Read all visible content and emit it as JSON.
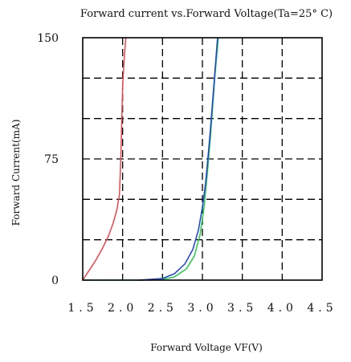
{
  "chart_data": {
    "type": "line",
    "title": "Forward current vs.Forward Voltage(Ta=25° C)",
    "xlabel": "Forward Voltage VF(V)",
    "ylabel": "Forward Current(mA)",
    "xlim": [
      1.5,
      4.5
    ],
    "ylim": [
      0,
      150
    ],
    "x_ticks": [
      1.5,
      2.0,
      2.5,
      3.0,
      3.5,
      4.0,
      4.5
    ],
    "x_tick_labels": [
      "1.5",
      "2.0",
      "2.5",
      "3.0",
      "3.5",
      "4.0",
      "4.5"
    ],
    "y_ticks": [
      0,
      75,
      150
    ],
    "y_tick_labels": [
      "0",
      "75",
      "150"
    ],
    "grid": "dashed",
    "series": [
      {
        "color": "#e8464a",
        "x": [
          1.5,
          1.58,
          1.66,
          1.74,
          1.82,
          1.88,
          1.93,
          1.96,
          1.97,
          1.98,
          1.99,
          2.0,
          2.02,
          2.04
        ],
        "y": [
          0,
          6,
          12,
          19,
          27,
          35,
          44,
          53,
          65,
          80,
          100,
          120,
          137,
          150
        ]
      },
      {
        "color": "#22cc44",
        "x": [
          1.5,
          1.9,
          2.2,
          2.5,
          2.65,
          2.8,
          2.9,
          2.97,
          3.02,
          3.06,
          3.1,
          3.13,
          3.16,
          3.2
        ],
        "y": [
          0,
          0,
          0,
          0.5,
          2,
          7,
          15,
          28,
          45,
          65,
          88,
          108,
          128,
          150
        ]
      },
      {
        "color": "#1f3fd6",
        "x": [
          2.2,
          2.5,
          2.65,
          2.78,
          2.88,
          2.95,
          3.0,
          3.04,
          3.07,
          3.1,
          3.13,
          3.16,
          3.19
        ],
        "y": [
          0,
          1,
          4,
          10,
          19,
          31,
          45,
          60,
          76,
          93,
          112,
          131,
          150
        ]
      }
    ]
  }
}
